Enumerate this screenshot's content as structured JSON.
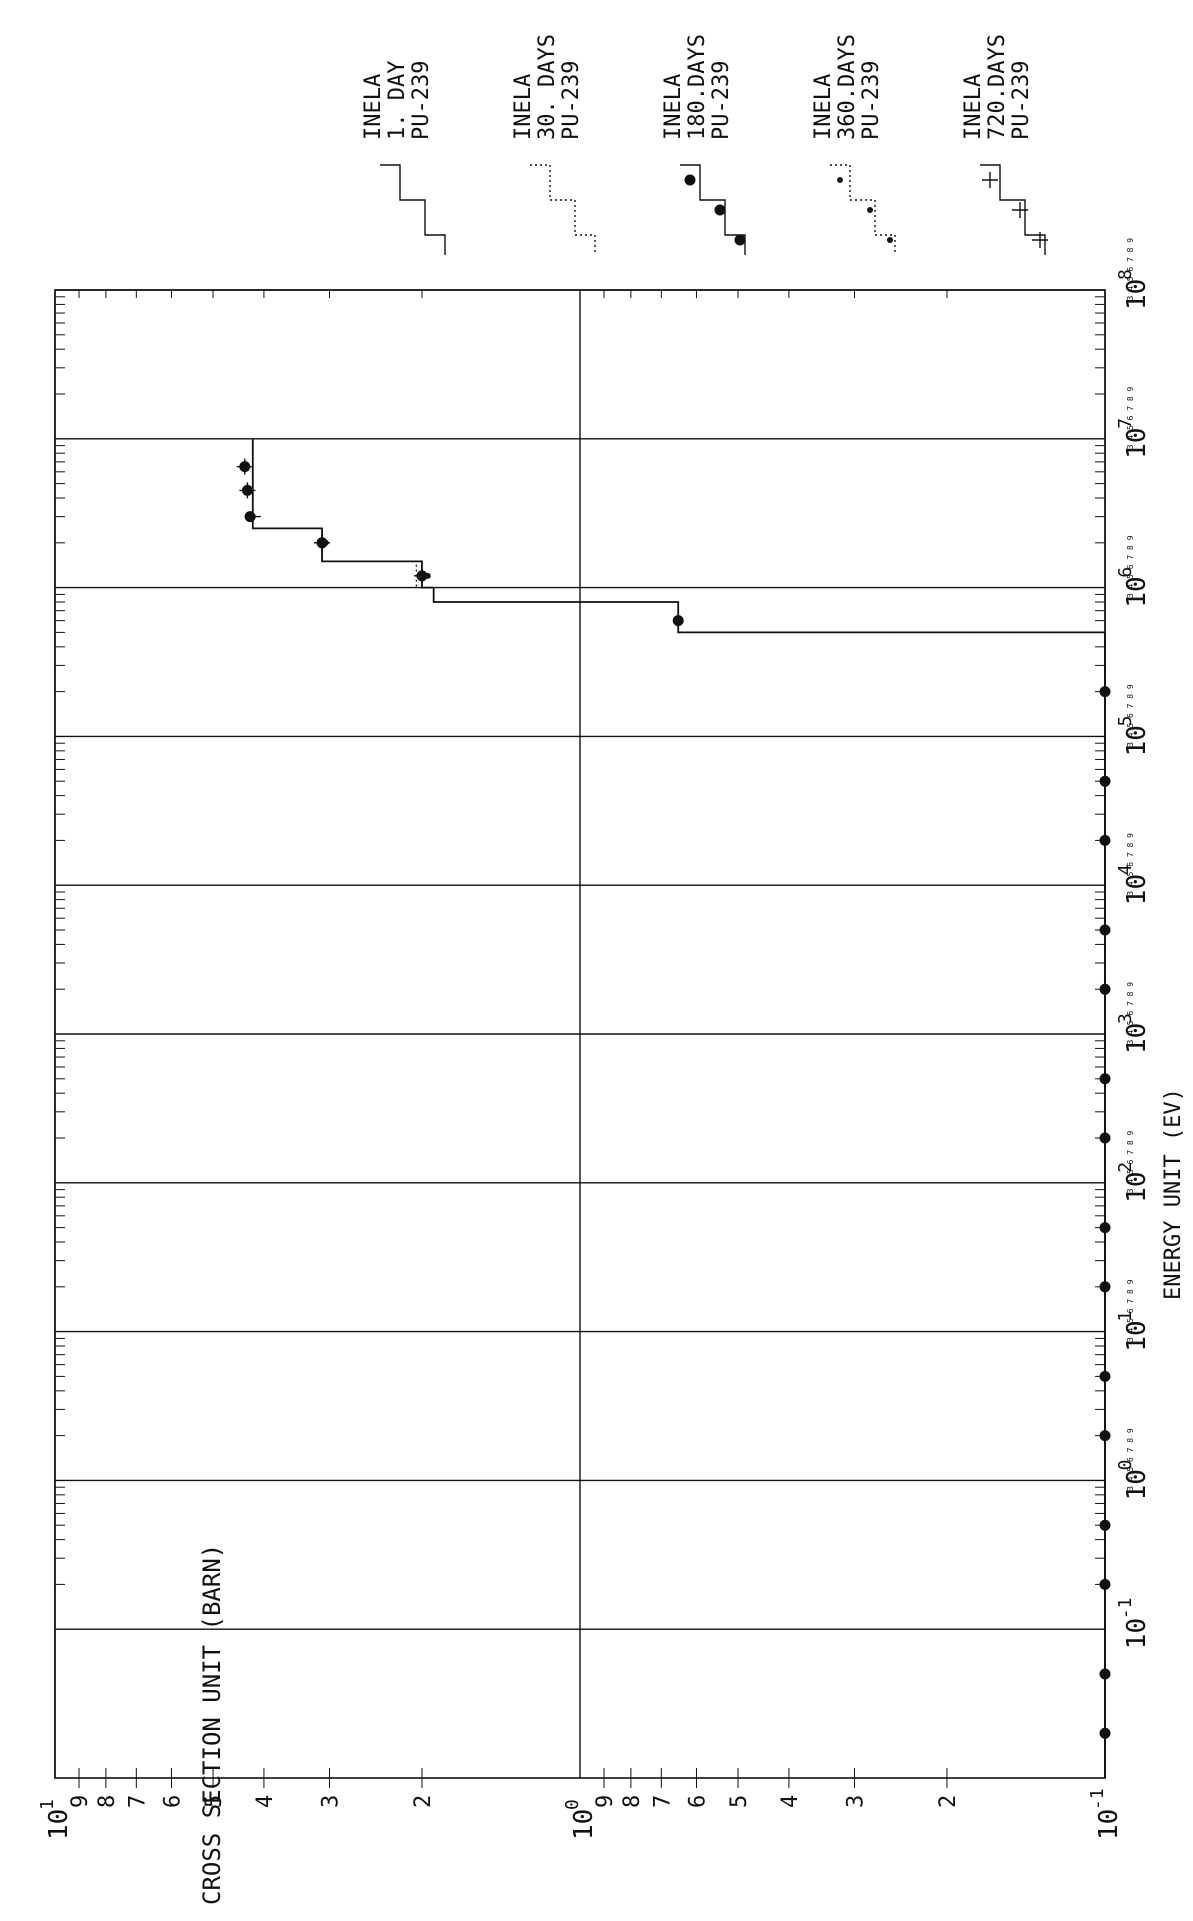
{
  "chart_data": {
    "type": "line",
    "orientation": "rotated-90-clockwise",
    "xlabel": "ENERGY UNIT (EV)",
    "ylabel": "CROSS SECTION UNIT (BARN)",
    "x_scale": "log",
    "y_scale": "log",
    "xlim": [
      0.01,
      100000000
    ],
    "ylim": [
      0.1,
      10
    ],
    "grid": true,
    "x_ticks": [
      {
        "base": "10",
        "exp": "-1",
        "value": 0.1
      },
      {
        "base": "10",
        "exp": "0",
        "value": 1
      },
      {
        "base": "10",
        "exp": "1",
        "value": 10
      },
      {
        "base": "10",
        "exp": "2",
        "value": 100
      },
      {
        "base": "10",
        "exp": "3",
        "value": 1000
      },
      {
        "base": "10",
        "exp": "4",
        "value": 10000
      },
      {
        "base": "10",
        "exp": "5",
        "value": 100000
      },
      {
        "base": "10",
        "exp": "6",
        "value": 1000000
      },
      {
        "base": "10",
        "exp": "7",
        "value": 10000000
      },
      {
        "base": "10",
        "exp": "8",
        "value": 100000000
      }
    ],
    "y_major_ticks": [
      {
        "base": "10",
        "exp": "-1",
        "value": 0.1
      },
      {
        "base": "10",
        "exp": "0",
        "value": 1
      },
      {
        "base": "10",
        "exp": "1",
        "value": 10
      }
    ],
    "y_minor_labels": [
      "2",
      "3",
      "4",
      "5",
      "6",
      "7",
      "8",
      "9"
    ],
    "minor_digit_labels": "3 4 5 6 7 8 9",
    "series": [
      {
        "name": "INELA 1. DAY PU-239",
        "legend_lines": [
          "INELA",
          "1.  DAY",
          "PU-239"
        ],
        "marker": "none",
        "dash": "solid",
        "steps": [
          [
            0.01,
            500000,
            0
          ],
          [
            500000,
            800000,
            0.65
          ],
          [
            800000,
            1000000,
            1.9
          ],
          [
            1000000,
            1500000,
            2.0
          ],
          [
            1500000,
            2500000,
            3.1
          ],
          [
            2500000,
            10000000,
            4.2
          ]
        ]
      },
      {
        "name": "INELA 30. DAYS PU-239",
        "legend_lines": [
          "INELA",
          "30. DAYS",
          "PU-239"
        ],
        "marker": "none",
        "dash": "dotted",
        "steps": [
          [
            0.01,
            500000,
            0
          ],
          [
            500000,
            800000,
            0.65
          ],
          [
            800000,
            1000000,
            1.9
          ],
          [
            1000000,
            1500000,
            2.05
          ],
          [
            1500000,
            2500000,
            3.1
          ],
          [
            2500000,
            10000000,
            4.2
          ]
        ]
      },
      {
        "name": "INELA 180.DAYS PU-239",
        "legend_lines": [
          "INELA",
          "180.DAYS",
          "PU-239"
        ],
        "marker": "circle-dot",
        "dash": "solid",
        "points": [
          [
            0.02,
            0.1
          ],
          [
            0.05,
            0.1
          ],
          [
            0.2,
            0.1
          ],
          [
            0.5,
            0.1
          ],
          [
            2,
            0.1
          ],
          [
            5,
            0.1
          ],
          [
            20,
            0.1
          ],
          [
            50,
            0.1
          ],
          [
            200,
            0.1
          ],
          [
            500,
            0.1
          ],
          [
            2000,
            0.1
          ],
          [
            5000,
            0.1
          ],
          [
            20000,
            0.1
          ],
          [
            50000,
            0.1
          ],
          [
            200000,
            0.1
          ],
          [
            600000,
            0.65
          ],
          [
            1200000,
            2.0
          ],
          [
            2000000,
            3.1
          ],
          [
            3000000,
            4.25
          ],
          [
            4500000,
            4.3
          ],
          [
            6500000,
            4.35
          ]
        ]
      },
      {
        "name": "INELA 360.DAYS PU-239",
        "legend_lines": [
          "INELA",
          "360.DAYS",
          "PU-239"
        ],
        "marker": "plus-dot",
        "dash": "dotted",
        "points": [
          [
            1200000,
            1.95
          ],
          [
            2000000,
            3.05
          ],
          [
            3000000,
            4.2
          ],
          [
            4500000,
            4.25
          ],
          [
            6500000,
            4.3
          ]
        ]
      },
      {
        "name": "INELA 720.DAYS PU-239",
        "legend_lines": [
          "INELA",
          "720.DAYS",
          "PU-239"
        ],
        "marker": "plus",
        "dash": "solid",
        "points": [
          [
            1200000,
            2.0
          ],
          [
            2000000,
            3.1
          ],
          [
            3000000,
            4.2
          ],
          [
            4500000,
            4.3
          ],
          [
            6500000,
            4.35
          ]
        ]
      }
    ]
  }
}
